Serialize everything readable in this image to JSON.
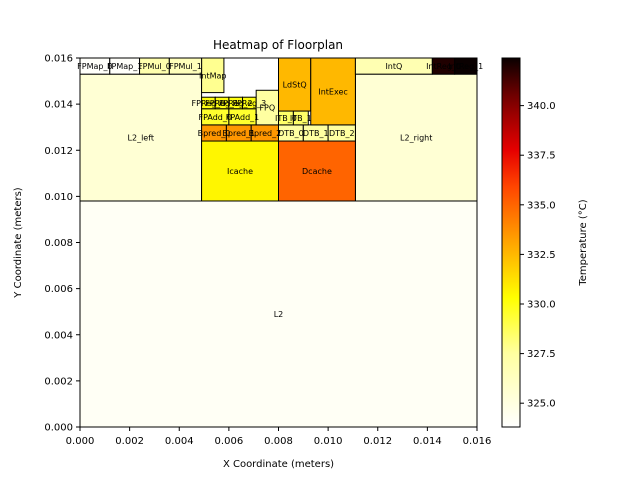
{
  "chart_data": {
    "type": "heatmap",
    "title": "Heatmap of Floorplan",
    "xlabel": "X Coordinate (meters)",
    "ylabel": "Y Coordinate (meters)",
    "xlim": [
      0,
      0.016
    ],
    "ylim": [
      0,
      0.016
    ],
    "x_ticks": [
      "0.000",
      "0.002",
      "0.004",
      "0.006",
      "0.008",
      "0.010",
      "0.012",
      "0.014",
      "0.016"
    ],
    "y_ticks": [
      "0.000",
      "0.002",
      "0.004",
      "0.006",
      "0.008",
      "0.010",
      "0.012",
      "0.014",
      "0.016"
    ],
    "colorbar": {
      "label": "Temperature (°C)",
      "range": [
        323.8,
        342.4
      ],
      "ticks": [
        "325.0",
        "327.5",
        "330.0",
        "332.5",
        "335.0",
        "337.5",
        "340.0"
      ],
      "colormap": "hot_r"
    },
    "blocks": [
      {
        "name": "L2",
        "x": 0.0,
        "y": 0.0,
        "w": 0.016,
        "h": 0.0098,
        "temp": 324.2
      },
      {
        "name": "L2_left",
        "x": 0.0,
        "y": 0.0098,
        "w": 0.0049,
        "h": 0.0055,
        "temp": 325.5
      },
      {
        "name": "L2_right",
        "x": 0.0111,
        "y": 0.0098,
        "w": 0.0049,
        "h": 0.0055,
        "temp": 325.5
      },
      {
        "name": "Icache",
        "x": 0.0049,
        "y": 0.0098,
        "w": 0.0031,
        "h": 0.0026,
        "temp": 330.6
      },
      {
        "name": "Dcache",
        "x": 0.008,
        "y": 0.0098,
        "w": 0.0031,
        "h": 0.0026,
        "temp": 335.0
      },
      {
        "name": "Bpred_0",
        "x": 0.0049,
        "y": 0.0124,
        "w": 0.001,
        "h": 0.0007,
        "temp": 333.5
      },
      {
        "name": "Bpred_1",
        "x": 0.0059,
        "y": 0.0124,
        "w": 0.001,
        "h": 0.0007,
        "temp": 333.5
      },
      {
        "name": "Bpred_2",
        "x": 0.0069,
        "y": 0.0124,
        "w": 0.0011,
        "h": 0.0007,
        "temp": 333.5
      },
      {
        "name": "DTB_0",
        "x": 0.008,
        "y": 0.0124,
        "w": 0.001,
        "h": 0.0007,
        "temp": 327.5
      },
      {
        "name": "DTB_1",
        "x": 0.009,
        "y": 0.0124,
        "w": 0.001,
        "h": 0.0007,
        "temp": 327.5
      },
      {
        "name": "DTB_2",
        "x": 0.01,
        "y": 0.0124,
        "w": 0.0011,
        "h": 0.0007,
        "temp": 327.5
      },
      {
        "name": "FPAdd_0",
        "x": 0.0049,
        "y": 0.0131,
        "w": 0.0011,
        "h": 0.0007,
        "temp": 329.5
      },
      {
        "name": "FPAdd_1",
        "x": 0.006,
        "y": 0.0131,
        "w": 0.0011,
        "h": 0.0007,
        "temp": 329.5
      },
      {
        "name": "FPReg_0",
        "x": 0.0049,
        "y": 0.0138,
        "w": 0.00055,
        "h": 0.0005,
        "temp": 330.0
      },
      {
        "name": "FPReg_1",
        "x": 0.00545,
        "y": 0.0138,
        "w": 0.00055,
        "h": 0.0005,
        "temp": 330.0
      },
      {
        "name": "FPReg_2",
        "x": 0.006,
        "y": 0.0138,
        "w": 0.00055,
        "h": 0.0005,
        "temp": 330.0
      },
      {
        "name": "FPReg_3",
        "x": 0.00655,
        "y": 0.0138,
        "w": 0.00055,
        "h": 0.0005,
        "temp": 330.0
      },
      {
        "name": "FPQ",
        "x": 0.0071,
        "y": 0.0131,
        "w": 0.0009,
        "h": 0.0015,
        "temp": 327.5
      },
      {
        "name": "ITB_0",
        "x": 0.008,
        "y": 0.0131,
        "w": 0.0006,
        "h": 0.0006,
        "temp": 328.5
      },
      {
        "name": "ITB_1",
        "x": 0.0086,
        "y": 0.0131,
        "w": 0.0006,
        "h": 0.0006,
        "temp": 328.5
      },
      {
        "name": "LdStQ",
        "x": 0.008,
        "y": 0.0137,
        "w": 0.0013,
        "h": 0.0023,
        "temp": 332.5
      },
      {
        "name": "IntExec",
        "x": 0.0093,
        "y": 0.0131,
        "w": 0.0018,
        "h": 0.0029,
        "temp": 332.5
      },
      {
        "name": "IntMap",
        "x": 0.0049,
        "y": 0.0145,
        "w": 0.0009,
        "h": 0.0015,
        "temp": 327.8
      },
      {
        "name": "FPMap_0",
        "x": 0.0,
        "y": 0.0153,
        "w": 0.0012,
        "h": 0.0007,
        "temp": 324.0
      },
      {
        "name": "FPMap_1",
        "x": 0.0012,
        "y": 0.0153,
        "w": 0.0012,
        "h": 0.0007,
        "temp": 324.0
      },
      {
        "name": "FPMul_0",
        "x": 0.0024,
        "y": 0.0153,
        "w": 0.0012,
        "h": 0.0007,
        "temp": 327.0
      },
      {
        "name": "FPMul_1",
        "x": 0.0036,
        "y": 0.0153,
        "w": 0.0013,
        "h": 0.0007,
        "temp": 326.5
      },
      {
        "name": "IntQ",
        "x": 0.0111,
        "y": 0.0153,
        "w": 0.0031,
        "h": 0.0007,
        "temp": 326.8
      },
      {
        "name": "IntReg_0",
        "x": 0.0142,
        "y": 0.0153,
        "w": 0.0009,
        "h": 0.0007,
        "temp": 342.0
      },
      {
        "name": "IntReg_1",
        "x": 0.0151,
        "y": 0.0153,
        "w": 0.0009,
        "h": 0.0007,
        "temp": 342.4
      }
    ],
    "visible_labels": [
      {
        "block": "L2",
        "text": "L2"
      },
      {
        "block": "L2_left",
        "text": "L2_left"
      },
      {
        "block": "L2_right",
        "text": "L2_right"
      },
      {
        "block": "Icache",
        "text": "Icache"
      },
      {
        "block": "Dcache",
        "text": "Dcache"
      },
      {
        "block": "LdStQ",
        "text": "LdStQ"
      },
      {
        "block": "IntExec",
        "text": "IntExec"
      },
      {
        "block": "IntMap",
        "text": "IntMap"
      },
      {
        "block": "IntQ",
        "text": "IntQ"
      },
      {
        "block": "IntReg_0",
        "text": "IntReg_0"
      },
      {
        "block": "IntReg_1",
        "text": "IntReg_1"
      },
      {
        "block": "FPMap_0",
        "text": "FPMap_0"
      },
      {
        "block": "FPMap_1",
        "text": "FPMap_1"
      },
      {
        "block": "FPMul_0",
        "text": "FPMul_0"
      },
      {
        "block": "FPMul_1",
        "text": "FPMul_1"
      },
      {
        "block": "FPQ",
        "text": "FPQ"
      },
      {
        "block": "FPReg_0",
        "text": "FPReg_0"
      },
      {
        "block": "FPReg_1",
        "text": "FPReg_1"
      },
      {
        "block": "FPReg_2",
        "text": "FPReg_2"
      },
      {
        "block": "FPReg_3",
        "text": "FPReg_3"
      },
      {
        "block": "FPAdd_0",
        "text": "FPAdd_0"
      },
      {
        "block": "FPAdd_1",
        "text": "FPAdd_1"
      },
      {
        "block": "Bpred_0",
        "text": "Bpred_0"
      },
      {
        "block": "Bpred_1",
        "text": "Bpred_1"
      },
      {
        "block": "Bpred_2",
        "text": "Bpred_2"
      },
      {
        "block": "DTB_0",
        "text": "DTB_0"
      },
      {
        "block": "DTB_1",
        "text": "DTB_1"
      },
      {
        "block": "DTB_2",
        "text": "DTB_2"
      },
      {
        "block": "ITB_0",
        "text": "ITB_0"
      },
      {
        "block": "ITB_1",
        "text": "ITB_1"
      }
    ]
  }
}
